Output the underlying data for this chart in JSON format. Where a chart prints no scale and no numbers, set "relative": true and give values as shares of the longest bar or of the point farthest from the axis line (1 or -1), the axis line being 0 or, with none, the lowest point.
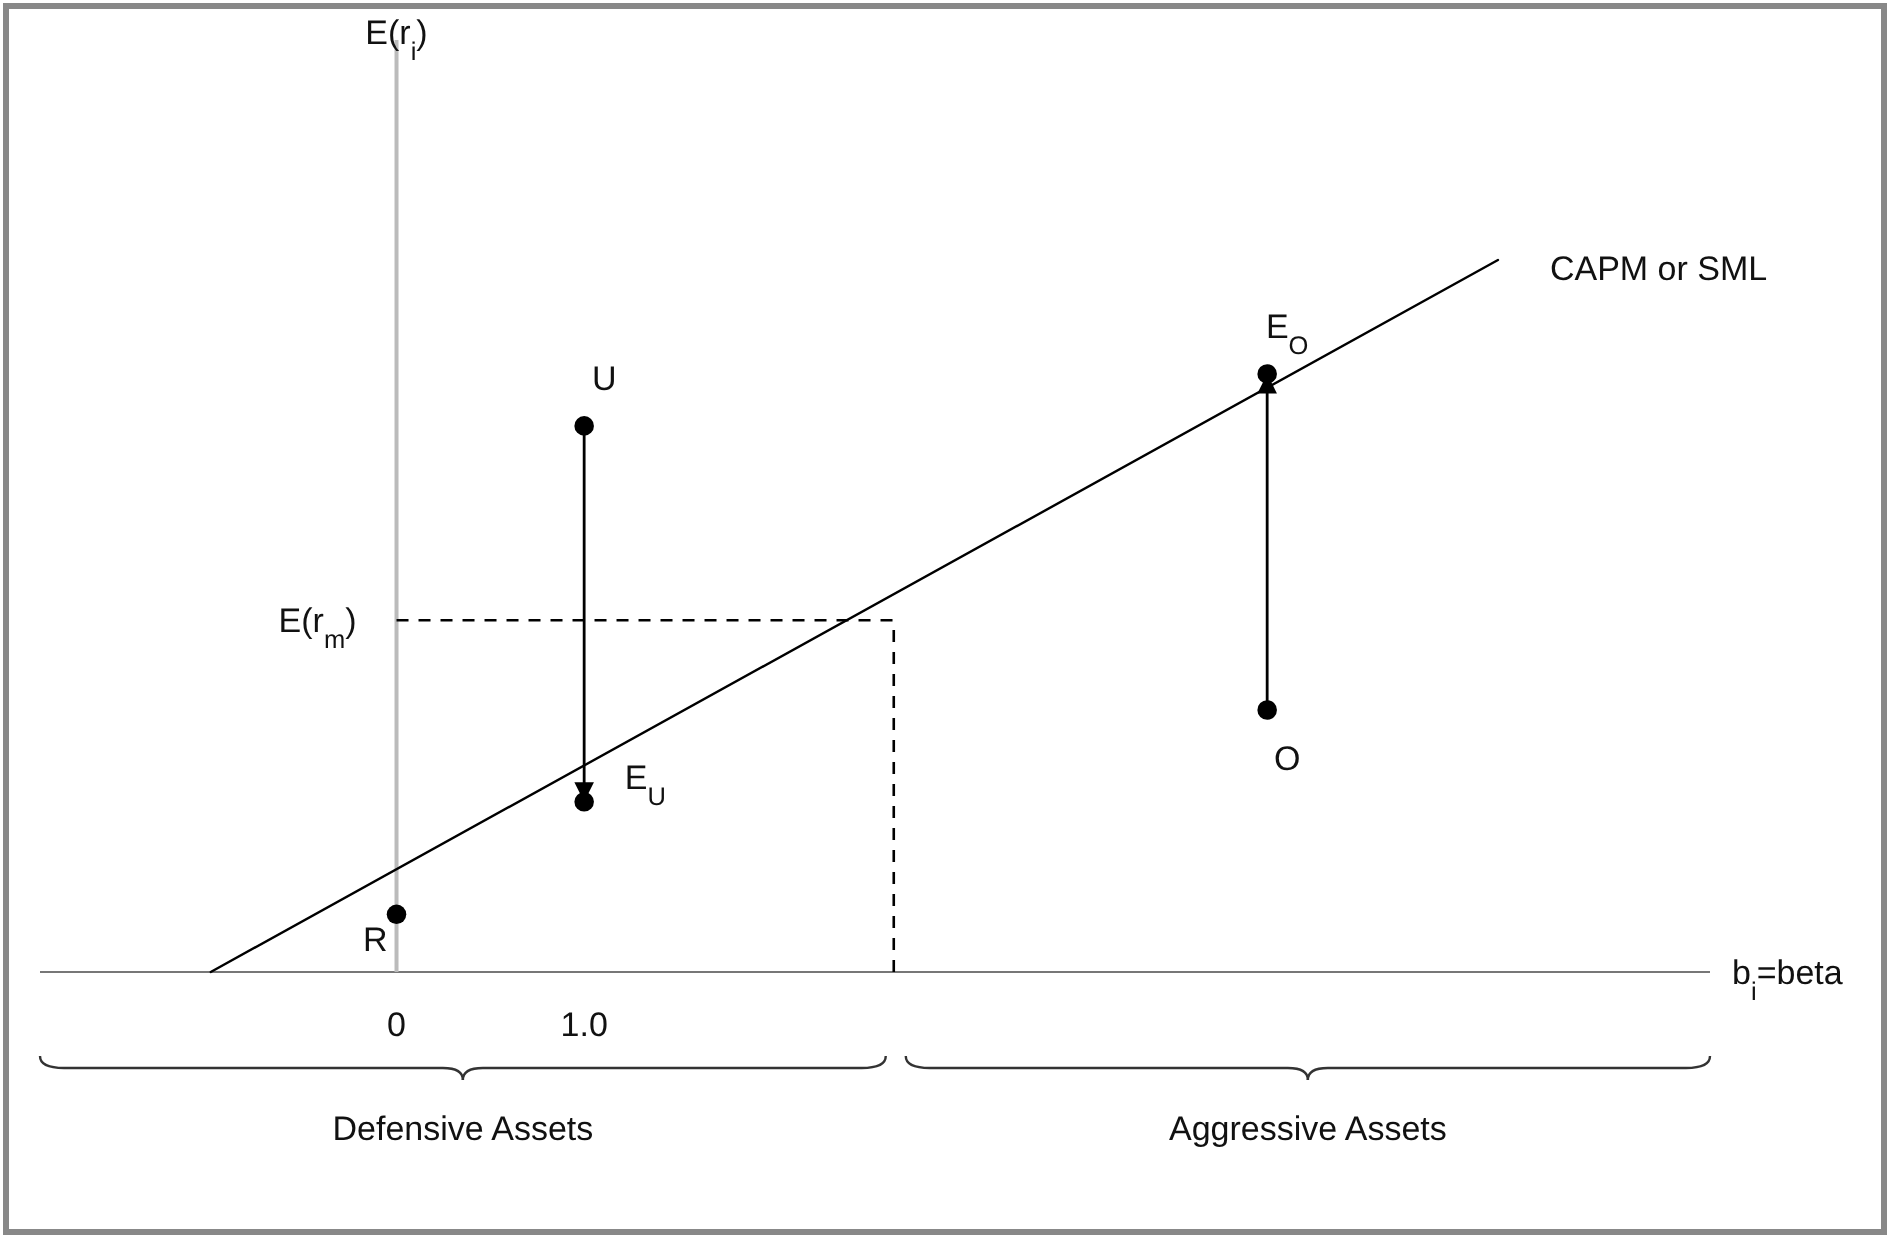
{
  "chart_data": {
    "type": "line",
    "relative": true,
    "xlim": [
      -1.9,
      7.0
    ],
    "xticks": [
      0,
      {
        "value": 1,
        "label": "1.0"
      }
    ],
    "tick_labels": "x",
    "xlabel": "b$_{i}$=beta",
    "marker": "circle",
    "series": [
      {
        "name": "CAPM or SML",
        "color": "#000000",
        "marker": "none",
        "x": [
          -0.99,
          5.87
        ],
        "values": [
          0,
          1
        ]
      },
      {
        "color": "#000000",
        "marker": "none",
        "x": [
          1,
          1
        ],
        "values": [
          0.767,
          0.239
        ]
      },
      {
        "color": "#000000",
        "marker": "none",
        "x": [
          4.64,
          4.64
        ],
        "values": [
          0.368,
          0.84
        ]
      },
      {
        "type": "scatter",
        "color": "#000000",
        "x": [
          0,
          1,
          1,
          4.64,
          4.64
        ],
        "values": [
          0.081,
          0.767,
          0.239,
          0.84,
          0.368
        ]
      }
    ],
    "ref_lines": [
      {
        "axis": "y",
        "value": 0.494,
        "label": "E(r$_{m}$)",
        "line_style": "dashed"
      },
      {
        "axis": "x",
        "value": 2.65,
        "line_style": "dashed"
      }
    ],
    "annotations": [
      {
        "text": "U",
        "x": 1,
        "y": 0.767
      },
      {
        "text": "E$_{U}$",
        "x": 1,
        "y": 0.239
      },
      {
        "text": "R",
        "x": 0,
        "y": 0.081
      },
      {
        "text": "E$_{O}$",
        "x": 4.64,
        "y": 0.84
      },
      {
        "text": "O",
        "x": 4.64,
        "y": 0.368
      },
      "E(r$_{i}$)",
      "Defensive Assets",
      "Aggressive Assets"
    ]
  }
}
